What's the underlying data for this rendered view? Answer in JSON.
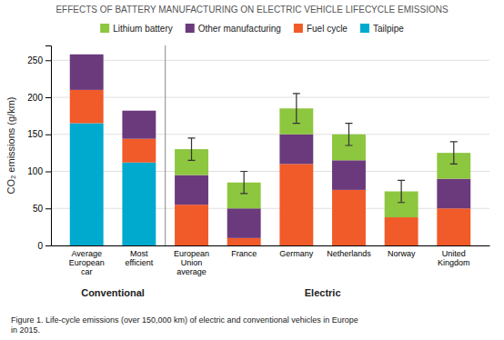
{
  "chart_data": {
    "type": "bar",
    "stacked": true,
    "title": "EFFECTS OF BATTERY MANUFACTURING ON ELECTRIC VEHICLE LIFECYCLE EMISSIONS",
    "ylabel": "CO₂ emissions (g/km)",
    "categories": [
      "Average\nEuropean\ncar",
      "Most\nefficient",
      "European\nUnion\naverage",
      "France",
      "Germany",
      "Netherlands",
      "Norway",
      "United\nKingdom"
    ],
    "series": [
      {
        "name": "Tailpipe",
        "color": "#00A9CE",
        "values": [
          165,
          112,
          0,
          0,
          0,
          0,
          0,
          0
        ]
      },
      {
        "name": "Fuel cycle",
        "color": "#F15A29",
        "values": [
          45,
          32,
          55,
          10,
          110,
          75,
          38,
          50
        ]
      },
      {
        "name": "Other manufacturing",
        "color": "#6B3A7D",
        "values": [
          48,
          38,
          40,
          40,
          40,
          40,
          0,
          40
        ]
      },
      {
        "name": "Lithium battery",
        "color": "#8DC63F",
        "values": [
          0,
          0,
          35,
          35,
          35,
          35,
          35,
          35
        ]
      }
    ],
    "error_bars": {
      "upper": [
        null,
        null,
        15,
        15,
        20,
        15,
        15,
        15
      ],
      "lower": [
        null,
        null,
        15,
        15,
        20,
        15,
        15,
        15
      ]
    },
    "groups": [
      {
        "label": "Conventional",
        "start": 0,
        "end": 1
      },
      {
        "label": "Electric",
        "start": 2,
        "end": 7
      }
    ],
    "caption": "Figure 1. Life-cycle emissions (over 150,000 km) of electric and conventional vehicles in Europe\nin 2015.",
    "ylim": [
      0,
      270
    ],
    "yticks": [
      0,
      50,
      100,
      150,
      200,
      250
    ],
    "grid": true,
    "legend": "top"
  }
}
